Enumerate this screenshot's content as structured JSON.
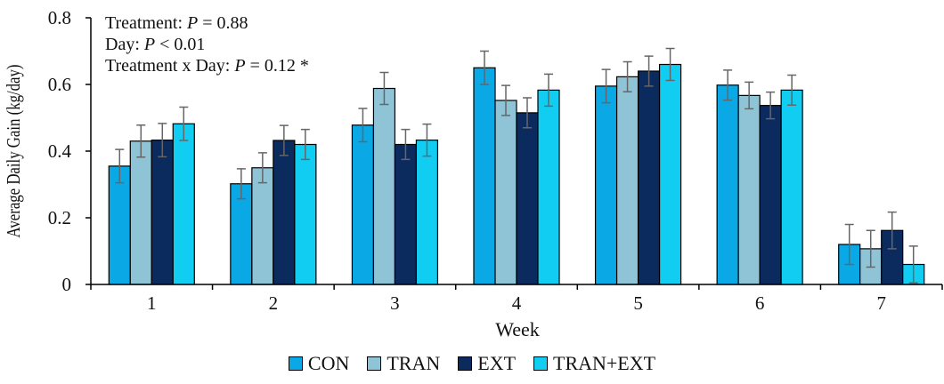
{
  "chart_data": {
    "type": "bar",
    "xlabel": "Week",
    "ylabel": "Average Daily Gain (kg/day)",
    "ylim": [
      0,
      0.8
    ],
    "yticks": [
      "0",
      "0.2",
      "0.4",
      "0.6",
      "0.8"
    ],
    "categories": [
      "1",
      "2",
      "3",
      "4",
      "5",
      "6",
      "7"
    ],
    "series": [
      {
        "name": "CON",
        "color": "#0BA8E6",
        "values": [
          0.355,
          0.302,
          0.478,
          0.65,
          0.595,
          0.598,
          0.12
        ],
        "errors": [
          0.05,
          0.045,
          0.05,
          0.05,
          0.05,
          0.045,
          0.06
        ]
      },
      {
        "name": "TRAN",
        "color": "#8FC3D6",
        "values": [
          0.43,
          0.35,
          0.588,
          0.552,
          0.623,
          0.567,
          0.107
        ],
        "errors": [
          0.048,
          0.045,
          0.048,
          0.045,
          0.045,
          0.04,
          0.055
        ]
      },
      {
        "name": "EXT",
        "color": "#0B2A5E",
        "values": [
          0.433,
          0.432,
          0.42,
          0.515,
          0.64,
          0.537,
          0.162
        ],
        "errors": [
          0.05,
          0.045,
          0.045,
          0.045,
          0.045,
          0.04,
          0.055
        ]
      },
      {
        "name": "TRAN+EXT",
        "color": "#12CDF2",
        "values": [
          0.482,
          0.42,
          0.433,
          0.583,
          0.66,
          0.583,
          0.06
        ],
        "errors": [
          0.05,
          0.045,
          0.048,
          0.048,
          0.048,
          0.045,
          0.055
        ]
      }
    ],
    "annotations": [
      {
        "label": "Treatment: ",
        "p": "P",
        "rest": " = 0.88"
      },
      {
        "label": "Day: ",
        "p": "P",
        "rest": " < 0.01"
      },
      {
        "label": "Treatment x Day: ",
        "p": "P",
        "rest": " = 0.12 *"
      }
    ],
    "legend_position": "bottom",
    "grid": false
  }
}
